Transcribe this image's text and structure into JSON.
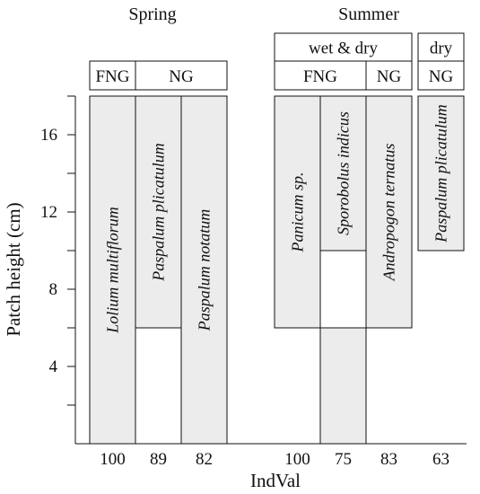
{
  "chart_data": {
    "type": "bar",
    "title": "",
    "ylabel": "Patch height (cm)",
    "xlabel": "IndVal",
    "ylim": [
      0,
      18
    ],
    "yticks": [
      4,
      8,
      12,
      16
    ],
    "groups": [
      {
        "season": "Spring",
        "condition_headers": [],
        "type_headers": [
          {
            "label": "FNG",
            "span": [
              0,
              0
            ]
          },
          {
            "label": "NG",
            "span": [
              1,
              2
            ]
          }
        ],
        "bars": [
          {
            "species": "Lolium multiflorum",
            "ymin": 0,
            "ymax": 18,
            "indval": "100"
          },
          {
            "species": "Paspalum plicatulum",
            "ymin": 6,
            "ymax": 18,
            "indval": "89"
          },
          {
            "species": "Paspalum notatum",
            "ymin": 0,
            "ymax": 18,
            "indval": "82"
          }
        ]
      },
      {
        "season": "Summer",
        "condition_headers": [
          {
            "label": "wet & dry",
            "span": [
              0,
              2
            ]
          },
          {
            "label": "dry",
            "span": [
              3,
              3
            ]
          }
        ],
        "type_headers": [
          {
            "label": "FNG",
            "span": [
              0,
              1
            ]
          },
          {
            "label": "NG",
            "span": [
              2,
              2
            ]
          },
          {
            "label": "NG",
            "span": [
              3,
              3
            ]
          }
        ],
        "bars": [
          {
            "species": "Panicum sp.",
            "ymin": 6,
            "ymax": 18,
            "indval": "100"
          },
          {
            "species": "Sporobolus indicus",
            "ymin": 0,
            "ymax": 18,
            "split_at": 10,
            "indval": "75"
          },
          {
            "species": "Andropogon ternatus",
            "ymin": 6,
            "ymax": 18,
            "indval": "83"
          },
          {
            "species": "Paspalum plicatulum",
            "ymin": 10,
            "ymax": 18,
            "indval": "63"
          }
        ]
      }
    ],
    "colors": {
      "bar_fill": "#ececec",
      "stroke": "#111111"
    }
  }
}
